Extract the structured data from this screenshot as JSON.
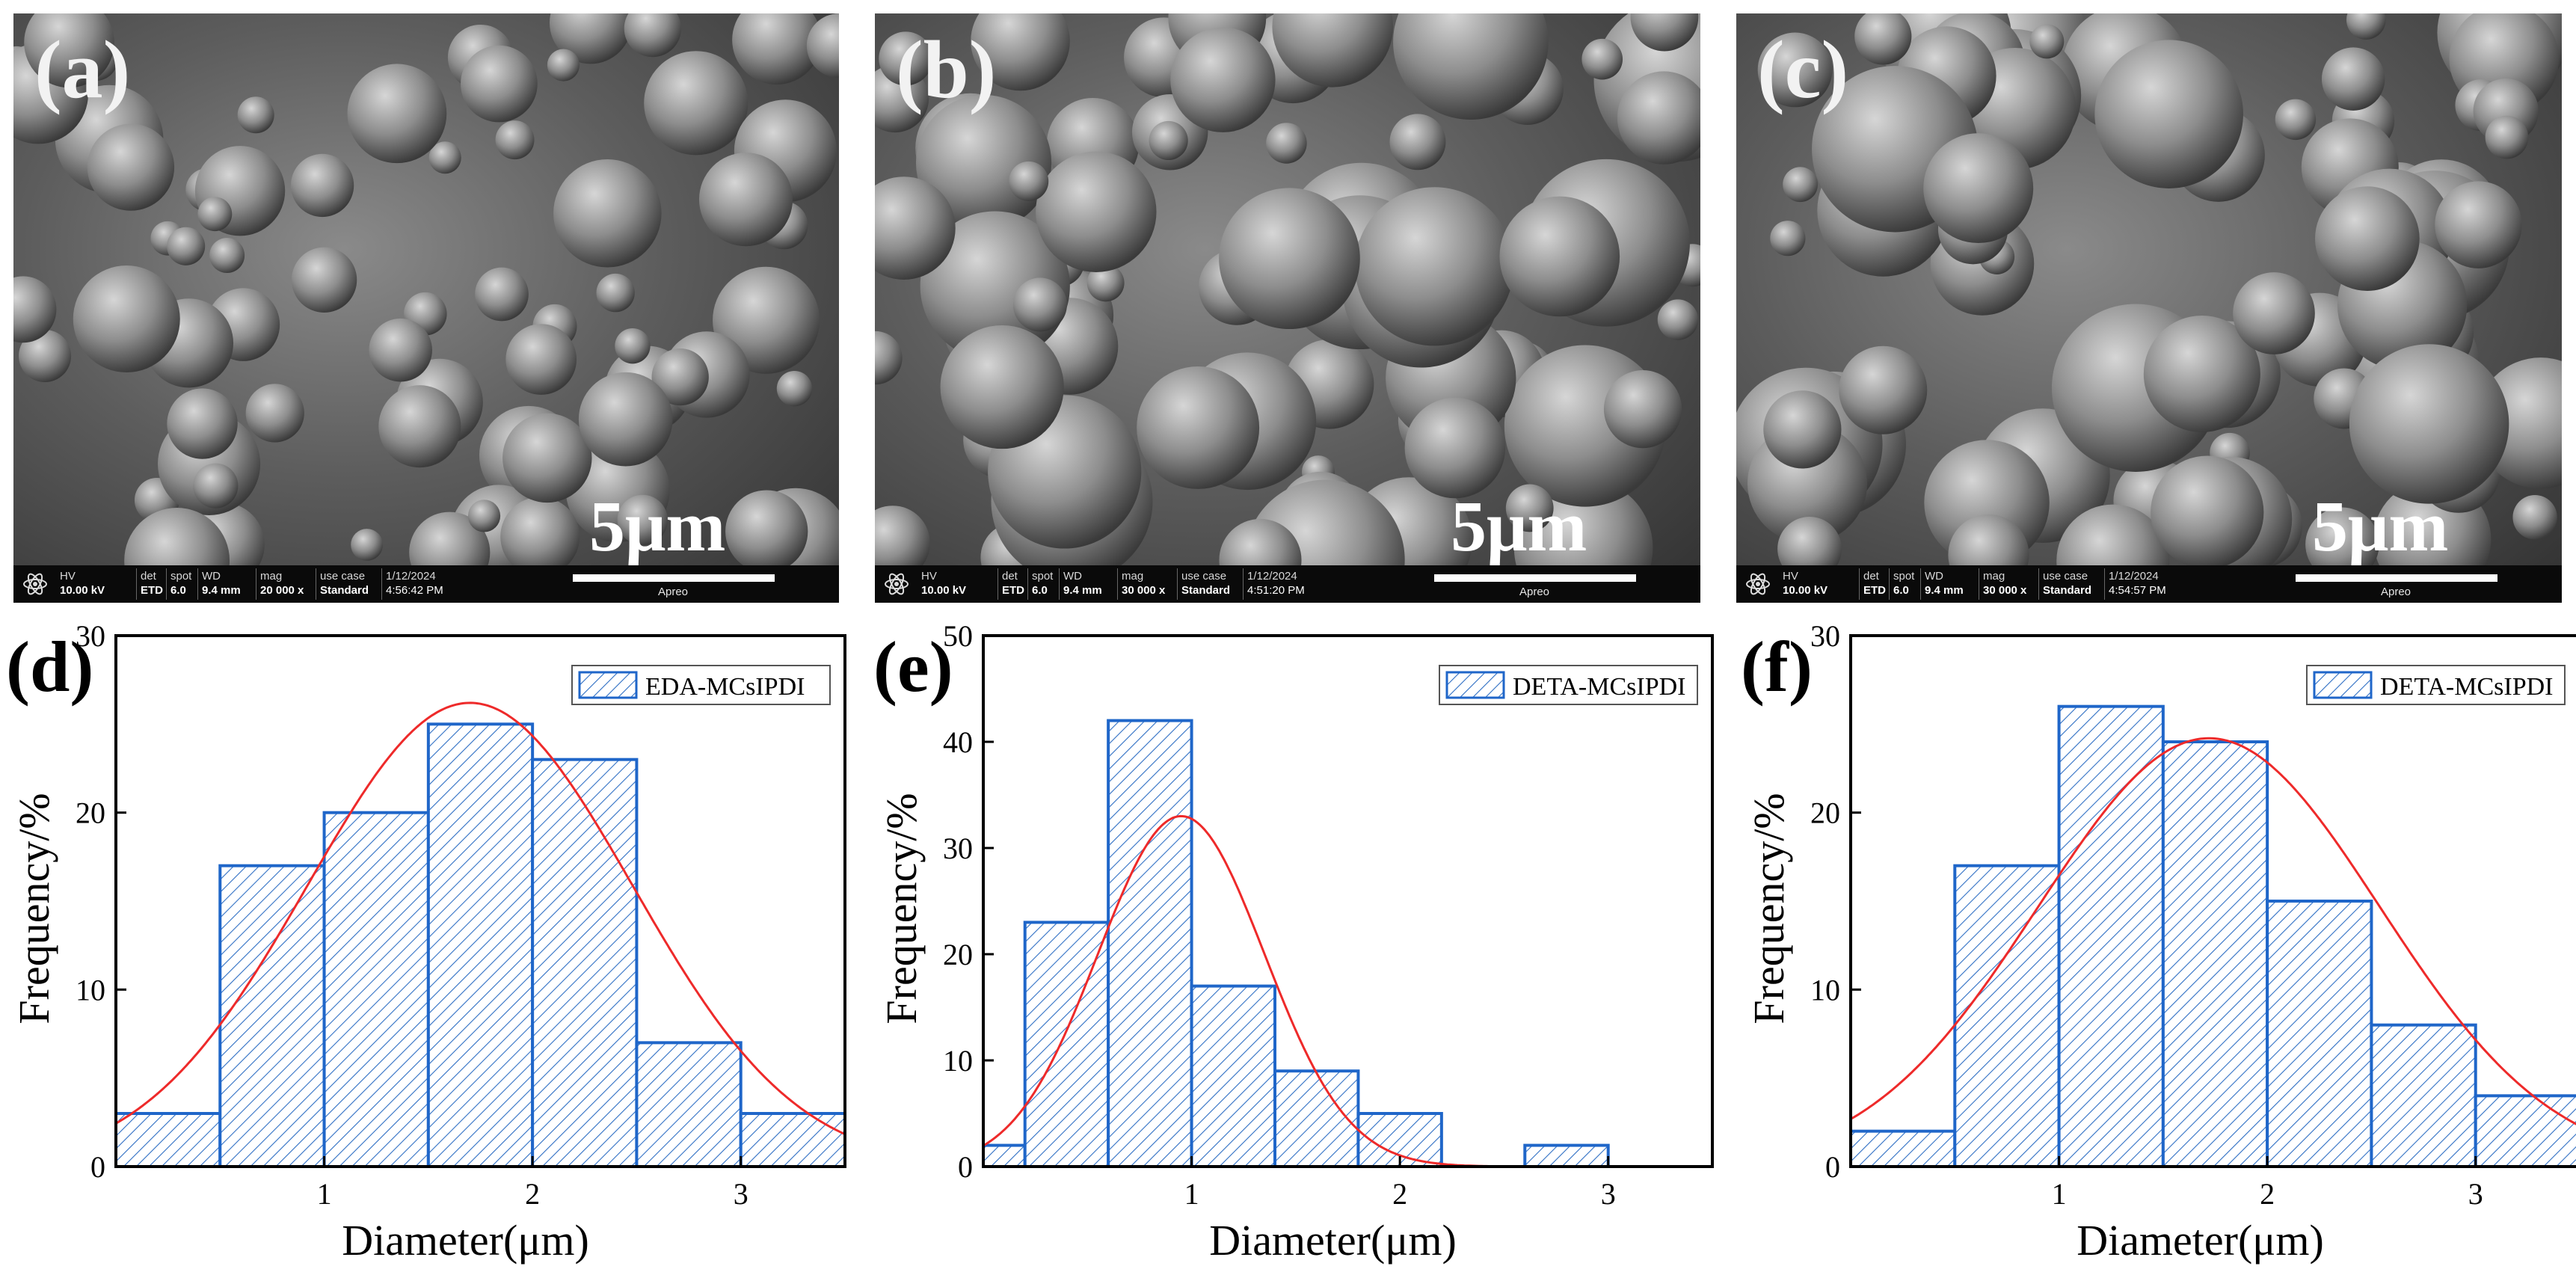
{
  "sem_panels": [
    {
      "label": "(a)",
      "scale_text": "5μm",
      "databar": {
        "hv": "10.00 kV",
        "det": "ETD",
        "spot": "6.0",
        "wd": "9.4 mm",
        "mag": "20 000 x",
        "use_case": "Standard",
        "date": "1/12/2024",
        "time": "4:56:42 PM",
        "brand": "Apreo"
      }
    },
    {
      "label": "(b)",
      "scale_text": "5μm",
      "databar": {
        "hv": "10.00 kV",
        "det": "ETD",
        "spot": "6.0",
        "wd": "9.4 mm",
        "mag": "30 000 x",
        "use_case": "Standard",
        "date": "1/12/2024",
        "time": "4:51:20 PM",
        "brand": "Apreo"
      }
    },
    {
      "label": "(c)",
      "scale_text": "5μm",
      "databar": {
        "hv": "10.00 kV",
        "det": "ETD",
        "spot": "6.0",
        "wd": "9.4 mm",
        "mag": "30 000 x",
        "use_case": "Standard",
        "date": "1/12/2024",
        "time": "4:54:57 PM",
        "brand": "Apreo"
      }
    }
  ],
  "databar_headers": {
    "hv": "HV",
    "det": "det",
    "spot": "spot",
    "wd": "WD",
    "mag": "mag",
    "use_case": "use case"
  },
  "colors": {
    "bar_edge": "#1f66c9",
    "hatch": "#2f6fc4",
    "fit_curve": "#ee2a2a",
    "axis": "#000000"
  },
  "chart_data": [
    {
      "panel_label": "(d)",
      "type": "bar",
      "bin_edges": [
        0,
        0.5,
        1,
        1.5,
        2,
        2.5,
        3,
        3.5
      ],
      "values": [
        3,
        17,
        20,
        25,
        23,
        7,
        3
      ],
      "fit": {
        "kind": "gaussian",
        "mean": 1.7,
        "sd": 0.78,
        "peak": 26.2
      },
      "xlim": [
        0,
        3.5
      ],
      "ylim": [
        0,
        30
      ],
      "xticks": [
        1,
        2,
        3
      ],
      "yticks": [
        0,
        10,
        20,
        30
      ],
      "xlabel": "Diameter(μm)",
      "ylabel": "Frequency/%",
      "legend": "EDA-MCsIPDI",
      "legend_position": "top-right"
    },
    {
      "panel_label": "(e)",
      "type": "bar",
      "bin_edges": [
        0,
        0.2,
        0.6,
        1,
        1.4,
        1.8,
        2.2,
        2.6,
        3
      ],
      "values": [
        2,
        23,
        42,
        17,
        9,
        5,
        0,
        2
      ],
      "fit": {
        "kind": "gaussian",
        "mean": 0.95,
        "sd": 0.4,
        "peak": 33
      },
      "xlim": [
        0,
        3.5
      ],
      "ylim": [
        0,
        50
      ],
      "xticks": [
        1,
        2,
        3
      ],
      "yticks": [
        0,
        10,
        20,
        30,
        40,
        50
      ],
      "xlabel": "Diameter(μm)",
      "ylabel": "Frequency/%",
      "legend": "DETA-MCsIPDI",
      "legend_position": "top-right"
    },
    {
      "panel_label": "(f)",
      "type": "bar",
      "bin_edges": [
        0,
        0.5,
        1,
        1.5,
        2,
        2.5,
        3,
        3.5
      ],
      "values": [
        2,
        17,
        26,
        24,
        15,
        8,
        4
      ],
      "fit": {
        "kind": "gaussian",
        "mean": 1.72,
        "sd": 0.82,
        "peak": 24.2
      },
      "xlim": [
        0,
        3.5
      ],
      "ylim": [
        0,
        30
      ],
      "xticks": [
        1,
        2,
        3
      ],
      "yticks": [
        0,
        10,
        20,
        30
      ],
      "xlabel": "Diameter(μm)",
      "ylabel": "Frequency/%",
      "legend": "DETA-MCsIPDI",
      "legend_position": "top-right"
    }
  ]
}
